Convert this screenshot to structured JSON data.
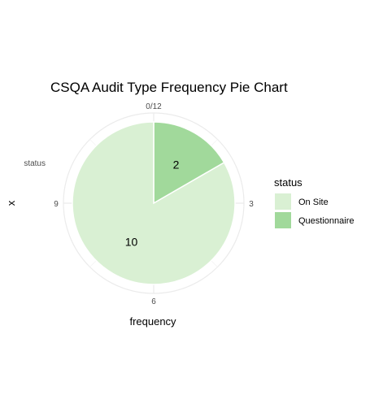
{
  "chart_data": {
    "type": "pie",
    "title": "CSQA Audit Type Frequency Pie Chart",
    "xlabel": "frequency",
    "ylabel": "x",
    "y_tick_label": "status",
    "theta_ticks": [
      {
        "label": "0/12",
        "value": 0
      },
      {
        "label": "3",
        "value": 3
      },
      {
        "label": "6",
        "value": 6
      },
      {
        "label": "9",
        "value": 9
      }
    ],
    "total": 12,
    "slices": [
      {
        "label": "Questionnaire",
        "value": 2,
        "display": "2",
        "color": "#A1D99B"
      },
      {
        "label": "On Site",
        "value": 10,
        "display": "10",
        "color": "#D9F0D3"
      }
    ],
    "legend": {
      "title": "status",
      "position": "right",
      "entries": [
        {
          "label": "On Site",
          "color": "#D9F0D3"
        },
        {
          "label": "Questionnaire",
          "color": "#A1D99B"
        }
      ]
    },
    "grid": true
  }
}
